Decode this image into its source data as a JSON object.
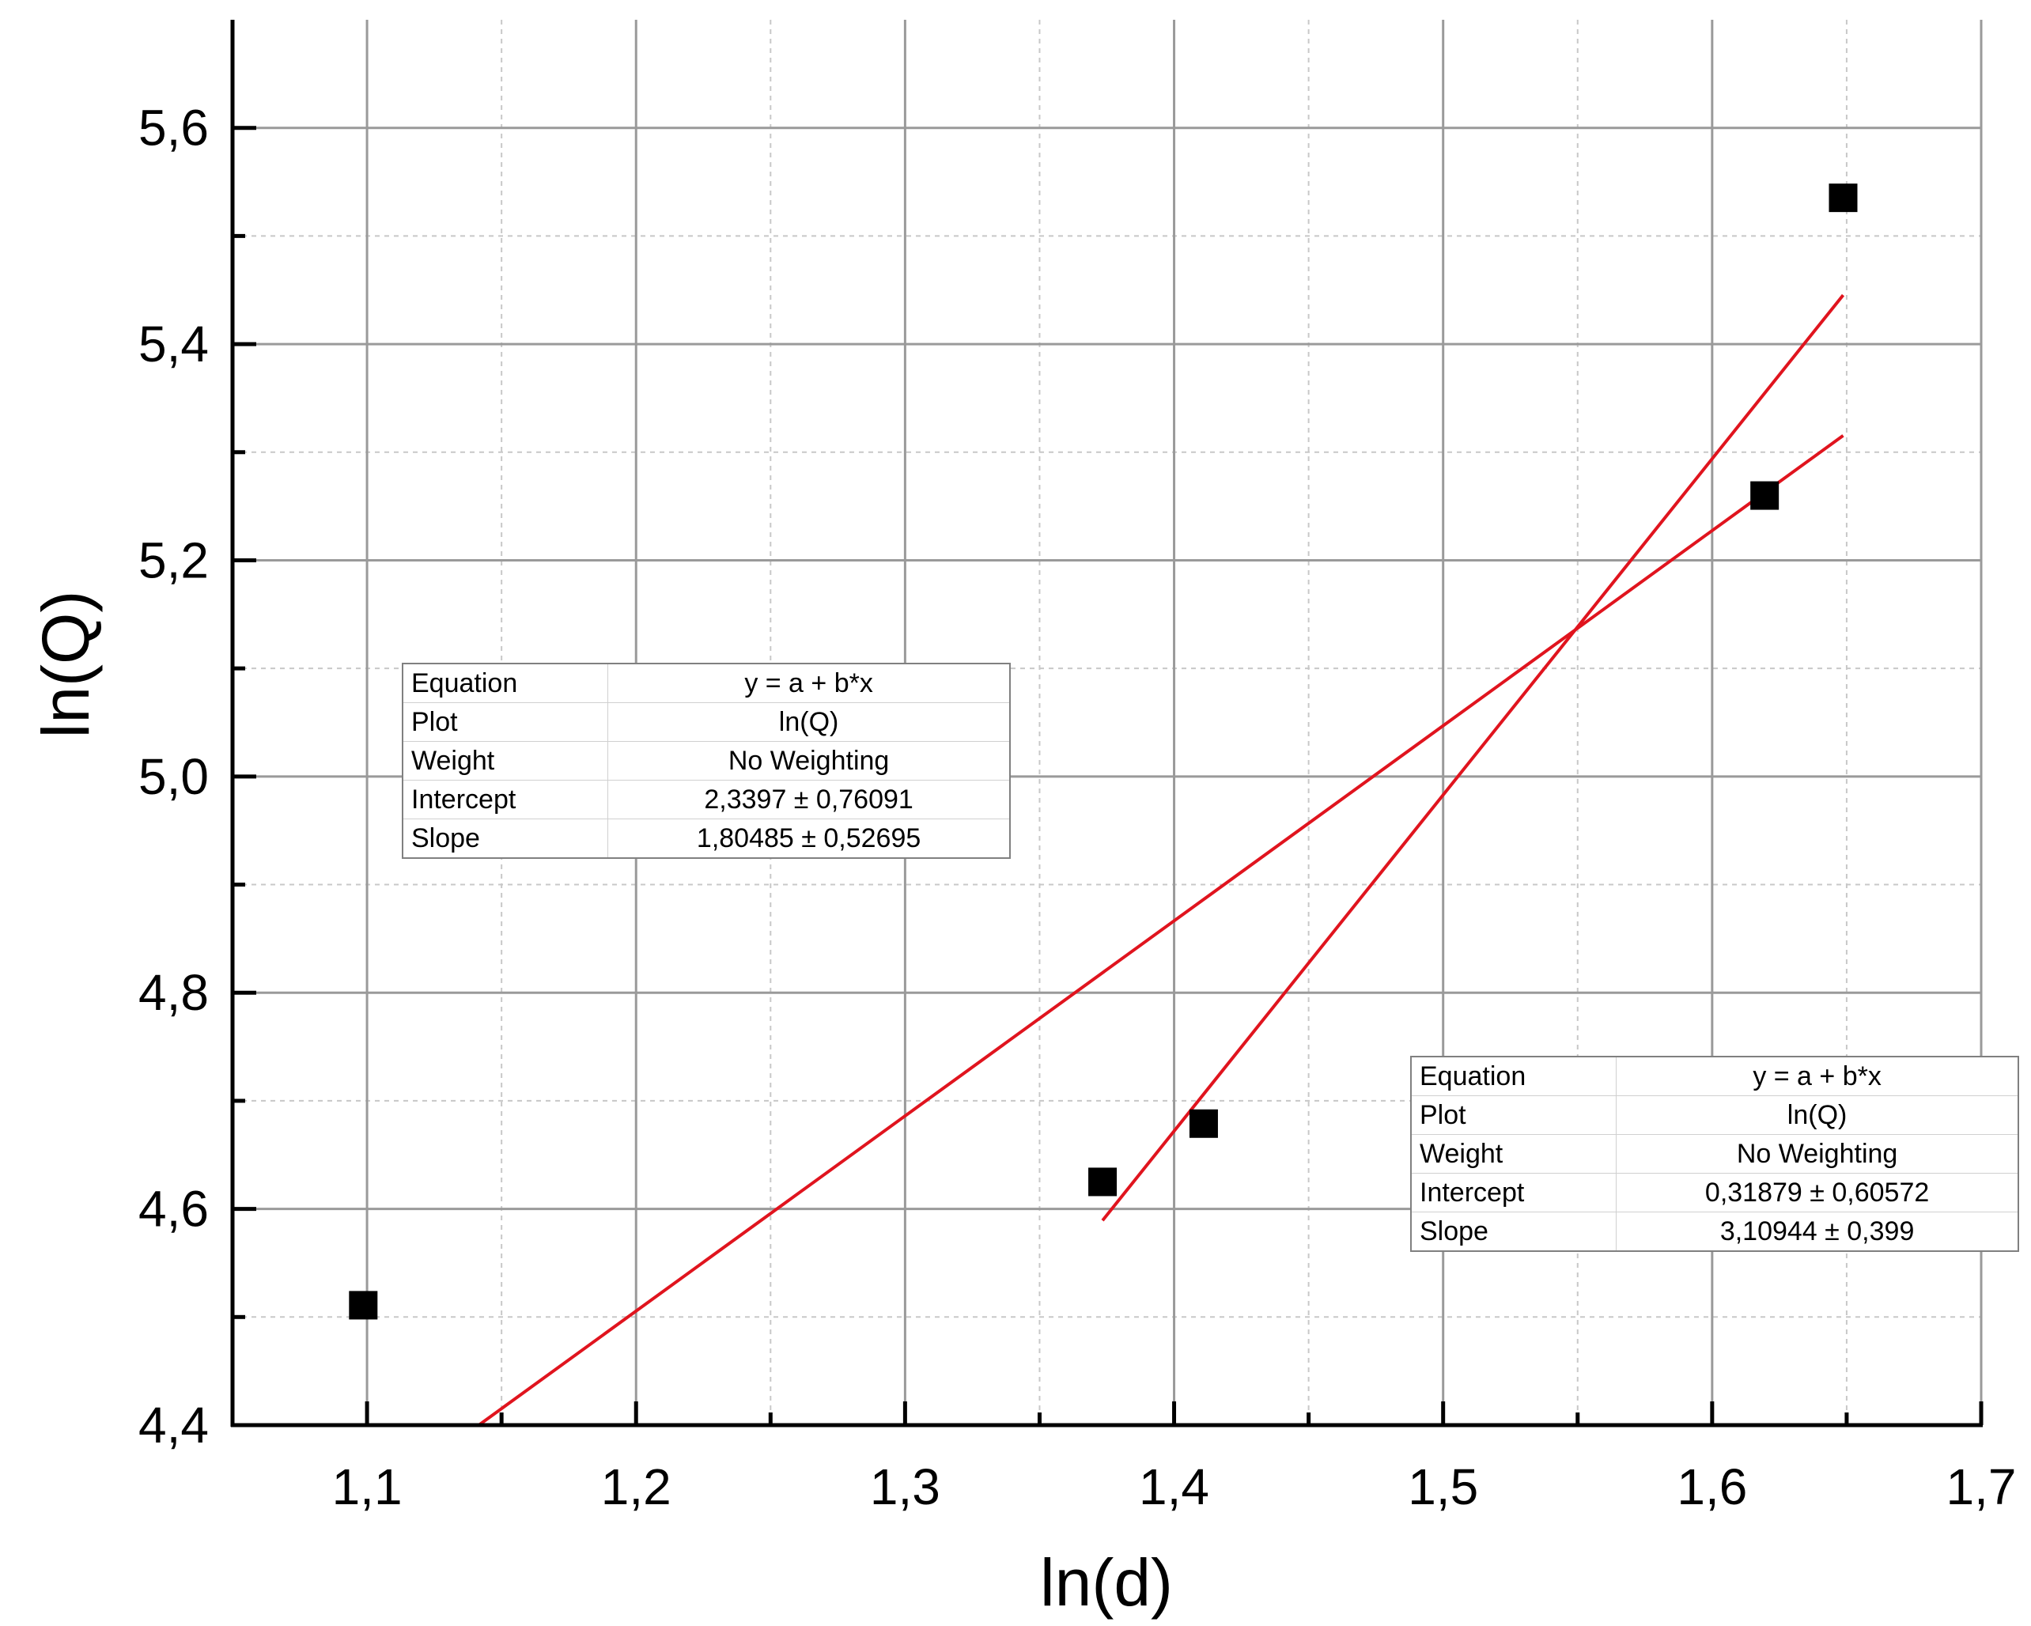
{
  "chart_data": {
    "type": "scatter",
    "xlabel": "ln(d)",
    "ylabel": "ln(Q)",
    "xlim": [
      1.05,
      1.7
    ],
    "ylim": [
      4.4,
      5.7
    ],
    "x_ticks": [
      "1,1",
      "1,2",
      "1,3",
      "1,4",
      "1,5",
      "1,6",
      "1,7"
    ],
    "y_ticks": [
      "4,4",
      "4,6",
      "4,8",
      "5,0",
      "5,2",
      "5,4",
      "5,6"
    ],
    "grid": true,
    "points": [
      {
        "x": 1.0986,
        "y": 4.5109
      },
      {
        "x": 1.3734,
        "y": 4.625
      },
      {
        "x": 1.411,
        "y": 4.6789
      },
      {
        "x": 1.6195,
        "y": 5.2599
      },
      {
        "x": 1.6487,
        "y": 5.5353
      }
    ],
    "fits": [
      {
        "intercept": 2.3397,
        "slope": 1.80485,
        "x_from": 1.0986,
        "x_to": 1.6487,
        "color": "#e0141e"
      },
      {
        "intercept": 0.31879,
        "slope": 3.10944,
        "x_from": 1.3734,
        "x_to": 1.6487,
        "color": "#e0141e"
      }
    ],
    "fit_tables": [
      {
        "rows": [
          {
            "label": "Equation",
            "value": "y = a + b*x"
          },
          {
            "label": "Plot",
            "value": "ln(Q)"
          },
          {
            "label": "Weight",
            "value": "No Weighting"
          },
          {
            "label": "Intercept",
            "value": "2,3397 ± 0,76091"
          },
          {
            "label": "Slope",
            "value": "1,80485 ± 0,52695"
          }
        ]
      },
      {
        "rows": [
          {
            "label": "Equation",
            "value": "y = a + b*x"
          },
          {
            "label": "Plot",
            "value": "ln(Q)"
          },
          {
            "label": "Weight",
            "value": "No Weighting"
          },
          {
            "label": "Intercept",
            "value": "0,31879 ± 0,60572"
          },
          {
            "label": "Slope",
            "value": "3,10944 ± 0,399"
          }
        ]
      }
    ]
  }
}
